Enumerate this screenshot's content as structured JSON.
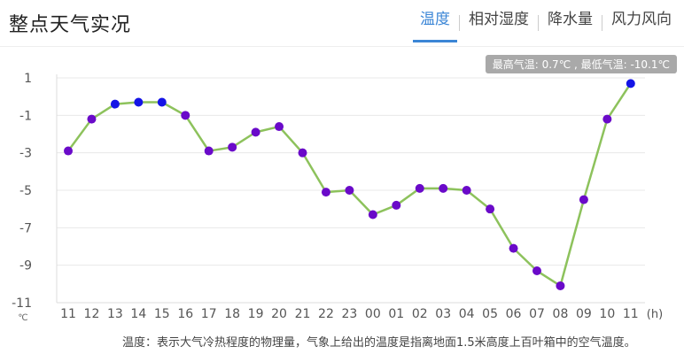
{
  "header": {
    "title": "整点天气实况",
    "tabs": [
      {
        "label": "温度",
        "active": true
      },
      {
        "label": "相对湿度",
        "active": false
      },
      {
        "label": "降水量",
        "active": false
      },
      {
        "label": "风力风向",
        "active": false
      }
    ]
  },
  "summary": "最高气温: 0.7℃ , 最低气温: -10.1℃",
  "footnote": "温度：表示大气冷热程度的物理量，气象上给出的温度是指离地面1.5米高度上百叶箱中的空气温度。",
  "colors": {
    "accent": "#3b86d6",
    "line": "#8dc25c",
    "point_blue": "#1414e6",
    "point_purple": "#6a0ac9"
  },
  "chart_data": {
    "type": "line",
    "x": [
      "11",
      "12",
      "13",
      "14",
      "15",
      "16",
      "17",
      "18",
      "19",
      "20",
      "21",
      "22",
      "23",
      "00",
      "01",
      "02",
      "03",
      "04",
      "05",
      "06",
      "07",
      "08",
      "09",
      "10",
      "11"
    ],
    "values": [
      -2.9,
      -1.2,
      -0.4,
      -0.3,
      -0.3,
      -1.0,
      -2.9,
      -2.7,
      -1.9,
      -1.6,
      -3.0,
      -5.1,
      -5.0,
      -6.3,
      -5.8,
      -4.9,
      -4.9,
      -5.0,
      -6.0,
      -8.1,
      -9.3,
      -10.1,
      -5.5,
      -1.2,
      0.7
    ],
    "point_colors": [
      "purple",
      "purple",
      "blue",
      "blue",
      "blue",
      "purple",
      "purple",
      "purple",
      "purple",
      "purple",
      "purple",
      "purple",
      "purple",
      "purple",
      "purple",
      "purple",
      "purple",
      "purple",
      "purple",
      "purple",
      "purple",
      "purple",
      "purple",
      "purple",
      "blue"
    ],
    "yticks": [
      1,
      -1,
      -3,
      -5,
      -7,
      -9,
      -11
    ],
    "ylim": [
      -11,
      1
    ],
    "ylabel": "℃",
    "xlabel": "(h)",
    "grid": true
  }
}
